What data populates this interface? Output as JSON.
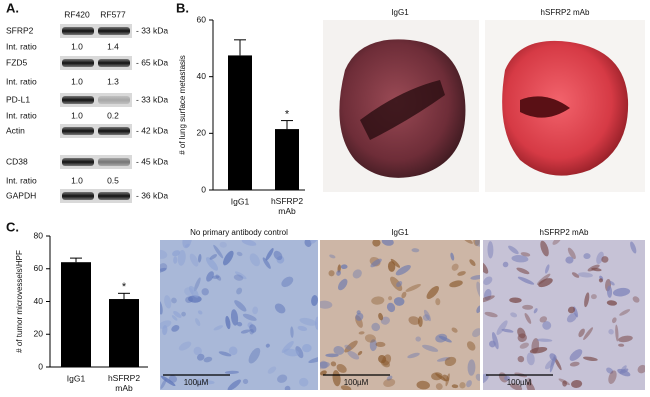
{
  "western_blot": {
    "label": "A.",
    "lanes": [
      "RF420",
      "RF577"
    ],
    "rows": [
      {
        "name": "SFRP2",
        "kda": "- 33 kDa"
      },
      {
        "name": "Int. ratio",
        "values": [
          "1.0",
          "1.4"
        ]
      },
      {
        "name": "FZD5",
        "kda": "- 65 kDa"
      },
      {
        "name": "Int. ratio",
        "values": [
          "1.0",
          "1.3"
        ]
      },
      {
        "name": "PD-L1",
        "kda": "- 33 kDa"
      },
      {
        "name": "Int. ratio",
        "values": [
          "1.0",
          "0.2"
        ]
      },
      {
        "name": "Actin",
        "kda": "- 42 kDa"
      },
      {
        "name": "CD38",
        "kda": "- 45 kDa"
      },
      {
        "name": "Int. ratio",
        "values": [
          "1.0",
          "0.5"
        ]
      },
      {
        "name": "GAPDH",
        "kda": "- 36 kDa"
      }
    ]
  },
  "panel_b": {
    "label": "B.",
    "image_titles": [
      "IgG1",
      "hSFRP2 mAb"
    ]
  },
  "panel_c": {
    "label": "C.",
    "image_titles": [
      "No primary antibody control",
      "IgG1",
      "hSFRP2 mAb"
    ],
    "scale_bars": [
      "100µM",
      "100µM",
      "100µM"
    ]
  },
  "chart_data": [
    {
      "type": "bar",
      "ylabel": "# of lung surface metastasis",
      "categories": [
        "IgG1",
        "hSFRP2 mAb"
      ],
      "values": [
        47.5,
        21.5
      ],
      "errors": [
        5.5,
        3
      ],
      "color": "#000000",
      "ylim": [
        0,
        60
      ],
      "yticks": [
        0,
        20,
        40,
        60
      ],
      "annotation": "*"
    },
    {
      "type": "bar",
      "ylabel": "# of tumor microvessels\\HPF",
      "categories": [
        "IgG1",
        "hSFRP2 mAb"
      ],
      "values": [
        64,
        41.5
      ],
      "errors": [
        2.5,
        3.5
      ],
      "color": "#000000",
      "ylim": [
        0,
        80
      ],
      "yticks": [
        0,
        20,
        40,
        60,
        80
      ],
      "annotation": "*"
    }
  ]
}
